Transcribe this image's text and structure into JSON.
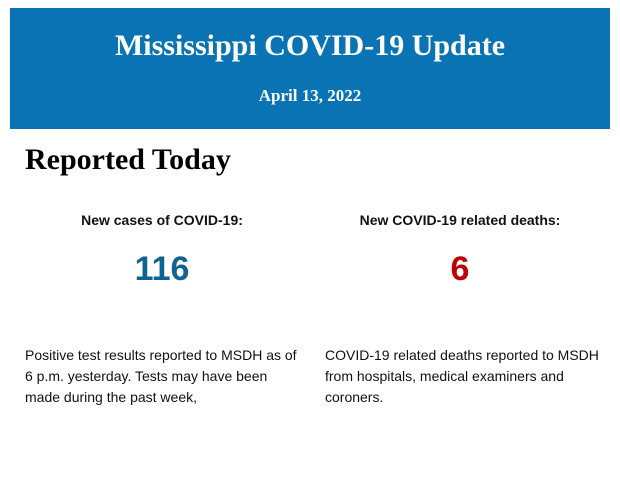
{
  "header": {
    "title": "Mississippi COVID-19 Update",
    "date": "April 13, 2022"
  },
  "section": {
    "title": "Reported Today"
  },
  "stats": [
    {
      "label": "New cases of COVID-19:",
      "value": 116,
      "color": "#0e6294",
      "description": "Positive test results reported to MSDH as of 6 p.m. yesterday. Tests may have been made during the past week,"
    },
    {
      "label": "New COVID-19 related deaths:",
      "value": 6,
      "color": "#c00000",
      "description": "COVID-19 related deaths reported to MSDH from hospitals, medical examiners and coroners."
    }
  ]
}
